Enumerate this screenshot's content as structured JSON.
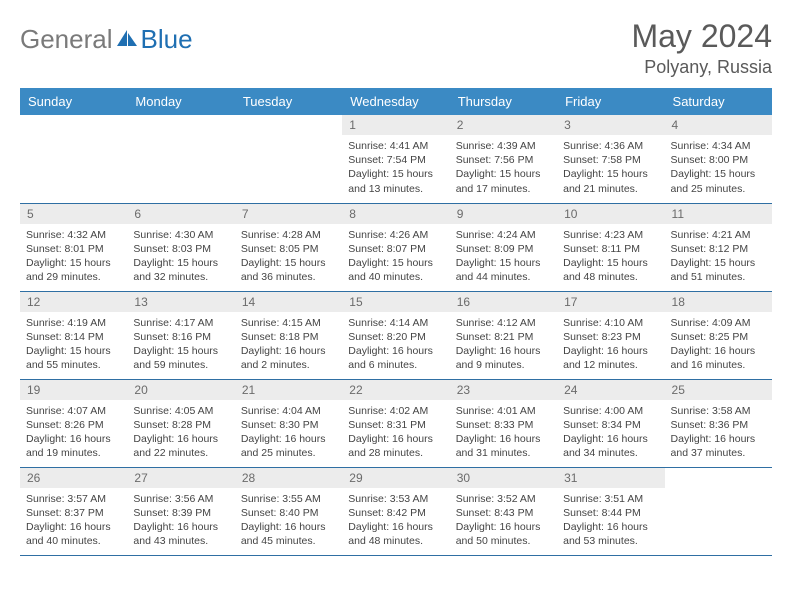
{
  "logo": {
    "part1": "General",
    "part2": "Blue"
  },
  "title": "May 2024",
  "location": "Polyany, Russia",
  "colors": {
    "header_bg": "#3b8ac4",
    "header_text": "#ffffff",
    "daynum_bg": "#ececec",
    "daynum_text": "#6b6b6b",
    "body_text": "#444444",
    "row_border": "#2f6fa3",
    "logo_gray": "#7a7a7a",
    "logo_blue": "#1f6fb2",
    "background": "#ffffff"
  },
  "weekdays": [
    "Sunday",
    "Monday",
    "Tuesday",
    "Wednesday",
    "Thursday",
    "Friday",
    "Saturday"
  ],
  "weeks": [
    [
      null,
      null,
      null,
      {
        "n": "1",
        "sr": "4:41 AM",
        "ss": "7:54 PM",
        "dl": "15 hours and 13 minutes."
      },
      {
        "n": "2",
        "sr": "4:39 AM",
        "ss": "7:56 PM",
        "dl": "15 hours and 17 minutes."
      },
      {
        "n": "3",
        "sr": "4:36 AM",
        "ss": "7:58 PM",
        "dl": "15 hours and 21 minutes."
      },
      {
        "n": "4",
        "sr": "4:34 AM",
        "ss": "8:00 PM",
        "dl": "15 hours and 25 minutes."
      }
    ],
    [
      {
        "n": "5",
        "sr": "4:32 AM",
        "ss": "8:01 PM",
        "dl": "15 hours and 29 minutes."
      },
      {
        "n": "6",
        "sr": "4:30 AM",
        "ss": "8:03 PM",
        "dl": "15 hours and 32 minutes."
      },
      {
        "n": "7",
        "sr": "4:28 AM",
        "ss": "8:05 PM",
        "dl": "15 hours and 36 minutes."
      },
      {
        "n": "8",
        "sr": "4:26 AM",
        "ss": "8:07 PM",
        "dl": "15 hours and 40 minutes."
      },
      {
        "n": "9",
        "sr": "4:24 AM",
        "ss": "8:09 PM",
        "dl": "15 hours and 44 minutes."
      },
      {
        "n": "10",
        "sr": "4:23 AM",
        "ss": "8:11 PM",
        "dl": "15 hours and 48 minutes."
      },
      {
        "n": "11",
        "sr": "4:21 AM",
        "ss": "8:12 PM",
        "dl": "15 hours and 51 minutes."
      }
    ],
    [
      {
        "n": "12",
        "sr": "4:19 AM",
        "ss": "8:14 PM",
        "dl": "15 hours and 55 minutes."
      },
      {
        "n": "13",
        "sr": "4:17 AM",
        "ss": "8:16 PM",
        "dl": "15 hours and 59 minutes."
      },
      {
        "n": "14",
        "sr": "4:15 AM",
        "ss": "8:18 PM",
        "dl": "16 hours and 2 minutes."
      },
      {
        "n": "15",
        "sr": "4:14 AM",
        "ss": "8:20 PM",
        "dl": "16 hours and 6 minutes."
      },
      {
        "n": "16",
        "sr": "4:12 AM",
        "ss": "8:21 PM",
        "dl": "16 hours and 9 minutes."
      },
      {
        "n": "17",
        "sr": "4:10 AM",
        "ss": "8:23 PM",
        "dl": "16 hours and 12 minutes."
      },
      {
        "n": "18",
        "sr": "4:09 AM",
        "ss": "8:25 PM",
        "dl": "16 hours and 16 minutes."
      }
    ],
    [
      {
        "n": "19",
        "sr": "4:07 AM",
        "ss": "8:26 PM",
        "dl": "16 hours and 19 minutes."
      },
      {
        "n": "20",
        "sr": "4:05 AM",
        "ss": "8:28 PM",
        "dl": "16 hours and 22 minutes."
      },
      {
        "n": "21",
        "sr": "4:04 AM",
        "ss": "8:30 PM",
        "dl": "16 hours and 25 minutes."
      },
      {
        "n": "22",
        "sr": "4:02 AM",
        "ss": "8:31 PM",
        "dl": "16 hours and 28 minutes."
      },
      {
        "n": "23",
        "sr": "4:01 AM",
        "ss": "8:33 PM",
        "dl": "16 hours and 31 minutes."
      },
      {
        "n": "24",
        "sr": "4:00 AM",
        "ss": "8:34 PM",
        "dl": "16 hours and 34 minutes."
      },
      {
        "n": "25",
        "sr": "3:58 AM",
        "ss": "8:36 PM",
        "dl": "16 hours and 37 minutes."
      }
    ],
    [
      {
        "n": "26",
        "sr": "3:57 AM",
        "ss": "8:37 PM",
        "dl": "16 hours and 40 minutes."
      },
      {
        "n": "27",
        "sr": "3:56 AM",
        "ss": "8:39 PM",
        "dl": "16 hours and 43 minutes."
      },
      {
        "n": "28",
        "sr": "3:55 AM",
        "ss": "8:40 PM",
        "dl": "16 hours and 45 minutes."
      },
      {
        "n": "29",
        "sr": "3:53 AM",
        "ss": "8:42 PM",
        "dl": "16 hours and 48 minutes."
      },
      {
        "n": "30",
        "sr": "3:52 AM",
        "ss": "8:43 PM",
        "dl": "16 hours and 50 minutes."
      },
      {
        "n": "31",
        "sr": "3:51 AM",
        "ss": "8:44 PM",
        "dl": "16 hours and 53 minutes."
      },
      null
    ]
  ],
  "labels": {
    "sunrise": "Sunrise:",
    "sunset": "Sunset:",
    "daylight": "Daylight:"
  }
}
